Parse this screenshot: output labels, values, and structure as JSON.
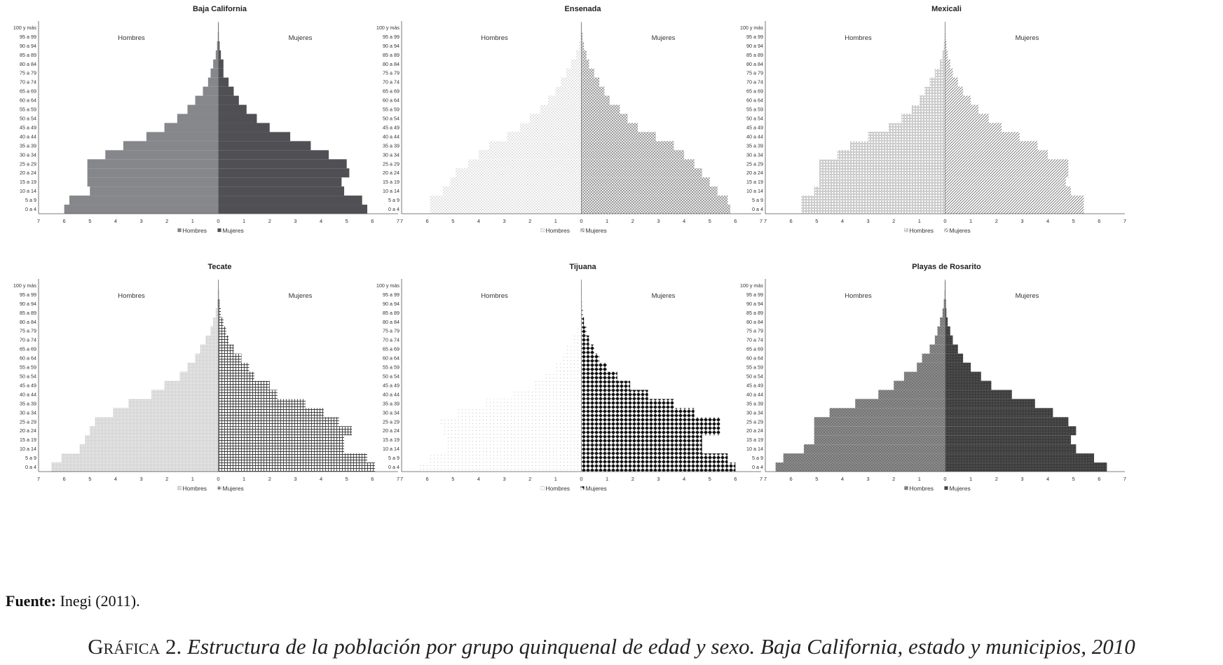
{
  "age_groups": [
    "0 a 4",
    "5 a 9",
    "10 a 14",
    "15 a 19",
    "20 a 24",
    "25 a 29",
    "30 a 34",
    "35 a 39",
    "40 a 44",
    "45 a 49",
    "50 a 54",
    "55 a 59",
    "60 a 64",
    "65 a 69",
    "70 a 74",
    "75 a 79",
    "80 a 84",
    "85 a 89",
    "90 a 94",
    "95 a 99",
    "100 y más"
  ],
  "colors": {
    "axis": "#555555",
    "text": "#222222"
  },
  "chart_data": [
    {
      "type": "bar",
      "title": "Baja California",
      "side_labels": {
        "left": "Hombres",
        "right": "Mujeres"
      },
      "xlim": [
        -7,
        7
      ],
      "ticks": [
        7,
        6,
        5,
        4,
        3,
        2,
        1,
        0,
        1,
        2,
        3,
        4,
        5,
        6,
        7
      ],
      "categories_ref": "age_groups",
      "series": [
        {
          "name": "Hombres",
          "side": "left",
          "color": "#86878b",
          "pattern": "solid",
          "values": [
            6.0,
            5.8,
            5.0,
            5.1,
            5.1,
            5.1,
            4.4,
            3.7,
            2.8,
            2.1,
            1.6,
            1.2,
            0.9,
            0.6,
            0.4,
            0.3,
            0.2,
            0.1,
            0.05,
            0.02,
            0.01
          ]
        },
        {
          "name": "Mujeres",
          "side": "right",
          "color": "#505054",
          "pattern": "solid",
          "values": [
            5.8,
            5.6,
            4.9,
            4.8,
            5.1,
            5.0,
            4.3,
            3.6,
            2.8,
            2.0,
            1.5,
            1.1,
            0.8,
            0.6,
            0.4,
            0.2,
            0.2,
            0.1,
            0.05,
            0.02,
            0.01
          ]
        }
      ]
    },
    {
      "type": "bar",
      "title": "Ensenada",
      "side_labels": {
        "left": "Hombres",
        "right": "Mujeres"
      },
      "xlim": [
        -7,
        7
      ],
      "ticks": [
        7,
        6,
        5,
        4,
        3,
        2,
        1,
        0,
        1,
        2,
        3,
        4,
        5,
        6,
        7
      ],
      "categories_ref": "age_groups",
      "series": [
        {
          "name": "Hombres",
          "side": "left",
          "color": "#b5b5b5",
          "pattern": "dots",
          "values": [
            5.9,
            5.9,
            5.4,
            5.1,
            4.9,
            4.4,
            4.0,
            3.6,
            2.9,
            2.4,
            2.0,
            1.6,
            1.3,
            1.0,
            0.8,
            0.6,
            0.4,
            0.2,
            0.1,
            0.05,
            0.02
          ]
        },
        {
          "name": "Mujeres",
          "side": "right",
          "color": "#8f8f8f",
          "pattern": "cross",
          "values": [
            5.8,
            5.7,
            5.3,
            5.0,
            4.7,
            4.4,
            4.0,
            3.6,
            2.9,
            2.2,
            1.8,
            1.5,
            1.1,
            0.9,
            0.7,
            0.5,
            0.3,
            0.2,
            0.1,
            0.05,
            0.02
          ]
        }
      ]
    },
    {
      "type": "bar",
      "title": "Mexicali",
      "side_labels": {
        "left": "Hombres",
        "right": "Mujeres"
      },
      "xlim": [
        -7,
        7
      ],
      "ticks": [
        7,
        6,
        5,
        4,
        3,
        2,
        1,
        0,
        1,
        2,
        3,
        4,
        5,
        6,
        7
      ],
      "categories_ref": "age_groups",
      "series": [
        {
          "name": "Hombres",
          "side": "left",
          "color": "#9a9a9a",
          "pattern": "hlines",
          "values": [
            5.6,
            5.6,
            5.1,
            4.9,
            4.9,
            4.9,
            4.2,
            3.7,
            3.0,
            2.2,
            1.7,
            1.3,
            1.0,
            0.8,
            0.6,
            0.4,
            0.2,
            0.1,
            0.05,
            0.02,
            0.01
          ]
        },
        {
          "name": "Mujeres",
          "side": "right",
          "color": "#6e6e6e",
          "pattern": "diag",
          "values": [
            5.4,
            5.4,
            4.9,
            4.7,
            4.8,
            4.8,
            4.0,
            3.6,
            2.9,
            2.2,
            1.7,
            1.3,
            1.0,
            0.7,
            0.5,
            0.3,
            0.2,
            0.1,
            0.05,
            0.02,
            0.01
          ]
        }
      ]
    },
    {
      "type": "bar",
      "title": "Tecate",
      "side_labels": {
        "left": "Hombres",
        "right": "Mujeres"
      },
      "xlim": [
        -7,
        7
      ],
      "ticks": [
        7,
        6,
        5,
        4,
        3,
        2,
        1,
        0,
        1,
        2,
        3,
        4,
        5,
        6,
        7
      ],
      "categories_ref": "age_groups",
      "series": [
        {
          "name": "Hombres",
          "side": "left",
          "color": "#b0b0b0",
          "pattern": "fine-grid",
          "values": [
            6.5,
            6.1,
            5.4,
            5.2,
            5.0,
            4.8,
            4.1,
            3.5,
            2.6,
            2.1,
            1.5,
            1.2,
            0.9,
            0.7,
            0.5,
            0.3,
            0.2,
            0.1,
            0.05,
            0.02,
            0.01
          ]
        },
        {
          "name": "Mujeres",
          "side": "right",
          "color": "#3a3a3a",
          "pattern": "grid",
          "values": [
            6.1,
            5.8,
            4.9,
            4.9,
            5.2,
            4.7,
            4.1,
            3.4,
            2.3,
            2.0,
            1.4,
            1.2,
            0.9,
            0.6,
            0.4,
            0.3,
            0.2,
            0.1,
            0.05,
            0.02,
            0.01
          ]
        }
      ]
    },
    {
      "type": "bar",
      "title": "Tijuana",
      "side_labels": {
        "left": "Hombres",
        "right": "Mujeres"
      },
      "xlim": [
        -7,
        7
      ],
      "ticks": [
        7,
        6,
        5,
        4,
        3,
        2,
        1,
        0,
        1,
        2,
        3,
        4,
        5,
        6,
        7
      ],
      "categories_ref": "age_groups",
      "series": [
        {
          "name": "Hombres",
          "side": "left",
          "color": "#c8c8c8",
          "pattern": "sparse-dots",
          "values": [
            6.3,
            5.9,
            5.2,
            5.2,
            5.4,
            5.5,
            4.8,
            3.7,
            2.7,
            1.8,
            1.4,
            1.0,
            0.8,
            0.6,
            0.4,
            0.2,
            0.1,
            0.05,
            0.03,
            0.01,
            0.01
          ]
        },
        {
          "name": "Mujeres",
          "side": "right",
          "color": "#111111",
          "pattern": "diamonds",
          "values": [
            6.0,
            5.7,
            4.7,
            4.7,
            5.4,
            5.4,
            4.4,
            3.6,
            2.6,
            1.9,
            1.4,
            1.0,
            0.7,
            0.5,
            0.3,
            0.2,
            0.1,
            0.05,
            0.03,
            0.01,
            0.01
          ]
        }
      ]
    },
    {
      "type": "bar",
      "title": "Playas de Rosarito",
      "side_labels": {
        "left": "Hombres",
        "right": "Mujeres"
      },
      "xlim": [
        -7,
        7
      ],
      "ticks": [
        7,
        6,
        5,
        4,
        3,
        2,
        1,
        0,
        1,
        2,
        3,
        4,
        5,
        6,
        7
      ],
      "categories_ref": "age_groups",
      "series": [
        {
          "name": "Hombres",
          "side": "left",
          "color": "#737373",
          "pattern": "dense-dots",
          "values": [
            6.6,
            6.3,
            5.5,
            5.1,
            5.1,
            5.1,
            4.5,
            3.5,
            2.6,
            2.0,
            1.6,
            1.1,
            0.9,
            0.6,
            0.4,
            0.3,
            0.2,
            0.1,
            0.05,
            0.02,
            0.01
          ]
        },
        {
          "name": "Mujeres",
          "side": "right",
          "color": "#3f3f3f",
          "pattern": "dense-dots-dark",
          "values": [
            6.3,
            5.8,
            5.1,
            4.9,
            5.1,
            4.8,
            4.2,
            3.5,
            2.6,
            1.8,
            1.4,
            1.0,
            0.7,
            0.5,
            0.3,
            0.2,
            0.1,
            0.05,
            0.03,
            0.01,
            0.01
          ]
        }
      ]
    }
  ],
  "footer": {
    "source_label": "Fuente:",
    "source_text": "Inegi (2011).",
    "caption_label": "Gráfica 2.",
    "caption_text": "Estructura de la población por grupo quinquenal de edad y sexo. Baja California, estado y municipios, 2010"
  }
}
